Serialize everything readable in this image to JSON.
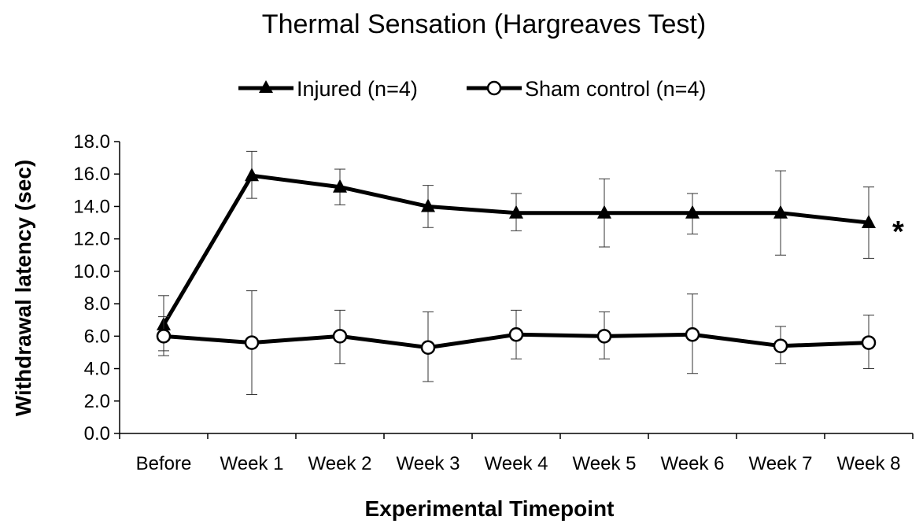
{
  "chart_data": {
    "type": "line",
    "title": "Thermal Sensation (Hargreaves Test)",
    "xlabel": "Experimental Timepoint",
    "ylabel": "Withdrawal latency (sec)",
    "categories": [
      "Before",
      "Week 1",
      "Week 2",
      "Week 3",
      "Week 4",
      "Week 5",
      "Week 6",
      "Week 7",
      "Week 8"
    ],
    "ylim": [
      0,
      18
    ],
    "yticks": [
      "0.0",
      "2.0",
      "4.0",
      "6.0",
      "8.0",
      "10.0",
      "12.0",
      "14.0",
      "16.0",
      "18.0"
    ],
    "grid": false,
    "legend_position": "top",
    "series": [
      {
        "name": "Injured (n=4)",
        "marker": "triangle",
        "color": "#000000",
        "values": [
          6.7,
          15.9,
          15.2,
          14.0,
          13.6,
          13.6,
          13.6,
          13.6,
          13.0
        ],
        "error_low": [
          5.1,
          14.5,
          14.1,
          12.7,
          12.5,
          11.5,
          12.3,
          11.0,
          10.8
        ],
        "error_high": [
          8.5,
          17.4,
          16.3,
          15.3,
          14.8,
          15.7,
          14.8,
          16.2,
          15.2
        ]
      },
      {
        "name": "Sham control (n=4)",
        "marker": "circle-open",
        "color": "#000000",
        "values": [
          6.0,
          5.6,
          6.0,
          5.3,
          6.1,
          6.0,
          6.1,
          5.4,
          5.6
        ],
        "error_low": [
          4.8,
          2.4,
          4.3,
          3.2,
          4.6,
          4.6,
          3.7,
          4.3,
          4.0
        ],
        "error_high": [
          7.2,
          8.8,
          7.6,
          7.5,
          7.6,
          7.5,
          8.6,
          6.6,
          7.3
        ]
      }
    ],
    "annotations": [
      {
        "text": "*",
        "series": 0,
        "category": "Week 8"
      }
    ]
  }
}
